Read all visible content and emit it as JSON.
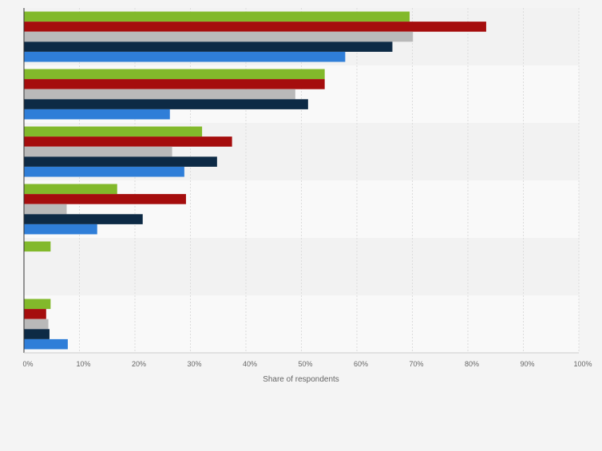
{
  "chart_data": {
    "type": "bar",
    "orientation": "horizontal",
    "title": "",
    "xlabel": "Share of respondents",
    "ylabel": "",
    "xlim": [
      0,
      100
    ],
    "ticks": [
      "0%",
      "10%",
      "20%",
      "30%",
      "40%",
      "50%",
      "60%",
      "70%",
      "80%",
      "90%",
      "100%"
    ],
    "tick_values": [
      0,
      10,
      20,
      30,
      40,
      50,
      60,
      70,
      80,
      90,
      100
    ],
    "grid": true,
    "legend": "none",
    "categories": [
      "",
      "",
      "",
      "",
      "",
      ""
    ],
    "series": [
      {
        "color": "#82b92b",
        "values": [
          69.5,
          54.2,
          32.1,
          16.8,
          4.8,
          4.8
        ]
      },
      {
        "color": "#a50d0d",
        "values": [
          83.3,
          54.2,
          37.5,
          29.2,
          0,
          4.0
        ]
      },
      {
        "color": "#b9b9b9",
        "values": [
          70.1,
          48.9,
          26.7,
          7.7,
          0,
          4.4
        ]
      },
      {
        "color": "#0d2a45",
        "values": [
          66.4,
          51.2,
          34.8,
          21.4,
          0,
          4.6
        ]
      },
      {
        "color": "#2f7ed8",
        "values": [
          57.9,
          26.3,
          28.9,
          13.2,
          0,
          7.9
        ]
      }
    ]
  }
}
